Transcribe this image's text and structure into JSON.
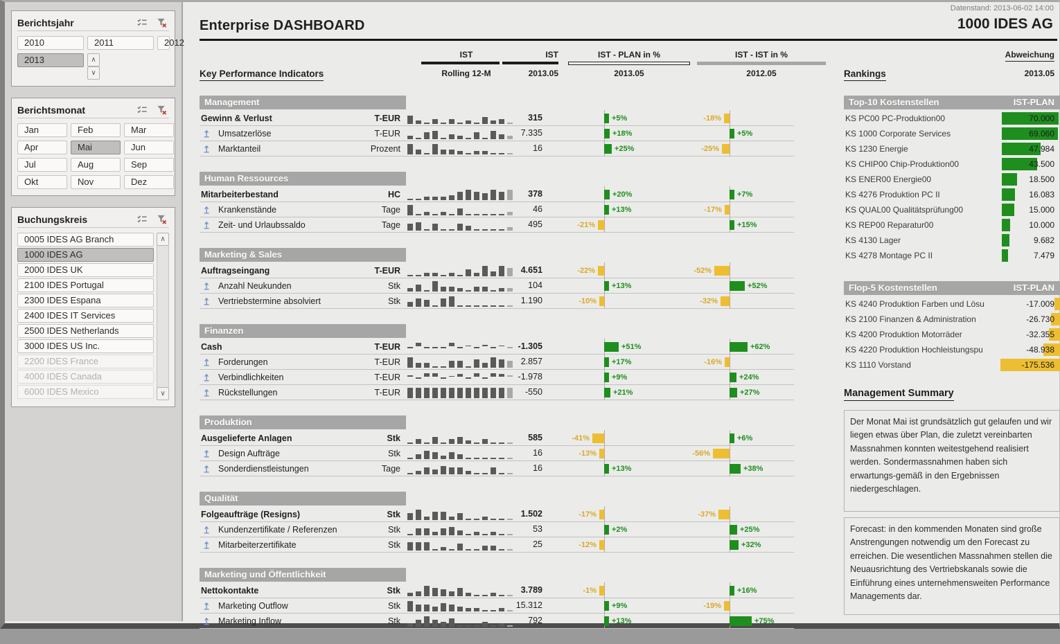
{
  "window": {
    "datenstand": "Datenstand: 2013-06-02 14:00",
    "title": "Enterprise DASHBOARD",
    "company": "1000 IDES AG"
  },
  "colors": {
    "green": "#1e8e1e",
    "amber": "#edbe31",
    "amber_label": "#d9a92b",
    "spark": "#5a5a5a",
    "spark_last": "#a9a9a9",
    "section_header": "#a6a6a6"
  },
  "icons": {
    "scroll_up": "∧",
    "scroll_down": "∨"
  },
  "slicers": [
    {
      "id": "berichtsjahr",
      "title": "Berichtsjahr",
      "items": [
        {
          "label": "2010",
          "state": "normal"
        },
        {
          "label": "2011",
          "state": "normal"
        },
        {
          "label": "2012",
          "state": "normal"
        },
        {
          "label": "2013",
          "state": "selected"
        }
      ]
    },
    {
      "id": "berichtsmonat",
      "title": "Berichtsmonat",
      "items": [
        {
          "label": "Jan",
          "state": "normal"
        },
        {
          "label": "Feb",
          "state": "normal"
        },
        {
          "label": "Mar",
          "state": "normal"
        },
        {
          "label": "Apr",
          "state": "normal"
        },
        {
          "label": "Mai",
          "state": "selected"
        },
        {
          "label": "Jun",
          "state": "normal"
        },
        {
          "label": "Jul",
          "state": "normal"
        },
        {
          "label": "Aug",
          "state": "normal"
        },
        {
          "label": "Sep",
          "state": "normal"
        },
        {
          "label": "Okt",
          "state": "normal"
        },
        {
          "label": "Nov",
          "state": "normal"
        },
        {
          "label": "Dez",
          "state": "normal"
        }
      ]
    },
    {
      "id": "buchungskreis",
      "title": "Buchungskreis",
      "items": [
        {
          "label": "0005 IDES AG Branch",
          "state": "normal"
        },
        {
          "label": "1000 IDES AG",
          "state": "selected"
        },
        {
          "label": "2000 IDES UK",
          "state": "normal"
        },
        {
          "label": "2100 IDES Portugal",
          "state": "normal"
        },
        {
          "label": "2300 IDES Espana",
          "state": "normal"
        },
        {
          "label": "2400 IDES IT Services",
          "state": "normal"
        },
        {
          "label": "2500 IDES Netherlands",
          "state": "normal"
        },
        {
          "label": "3000 IDES US Inc.",
          "state": "normal"
        },
        {
          "label": "2200 IDES France",
          "state": "disabled"
        },
        {
          "label": "4000 IDES Canada",
          "state": "disabled"
        },
        {
          "label": "6000 IDES Mexico",
          "state": "disabled"
        }
      ]
    }
  ],
  "kpi": {
    "heading": "Key Performance Indicators",
    "columns": {
      "ist_rolling_top": "IST",
      "ist_rolling_sub": "Rolling 12-M",
      "ist_month_top": "IST",
      "ist_month_sub": "2013.05",
      "plan_top": "IST - PLAN in %",
      "plan_sub": "2013.05",
      "istist_top": "IST - IST in %",
      "istist_sub": "2012.05",
      "abweichung_top": "Abweichung",
      "abweichung_sub": "2013.05"
    },
    "sections": [
      {
        "title": "Management",
        "rows": [
          {
            "label": "Gewinn & Verlust",
            "unit": "T-EUR",
            "parent": true,
            "value": "315",
            "plan": 5,
            "plan_label": "+5%",
            "ist": -18,
            "ist_label": "-18%",
            "spark": [
              5,
              2,
              1,
              3,
              1,
              3,
              1,
              2,
              1,
              4,
              2,
              3,
              1
            ]
          },
          {
            "label": "Umsatzerlöse",
            "unit": "T-EUR",
            "parent": false,
            "value": "7.335",
            "plan": 18,
            "plan_label": "+18%",
            "ist": 5,
            "ist_label": "+5%",
            "spark": [
              2,
              0.5,
              4,
              5,
              1,
              3,
              2,
              0.5,
              4,
              1,
              5,
              3,
              2
            ]
          },
          {
            "label": "Marktanteil",
            "unit": "Prozent",
            "parent": false,
            "value": "16",
            "plan": 25,
            "plan_label": "+25%",
            "ist": -25,
            "ist_label": "-25%",
            "spark": [
              6,
              3,
              0.5,
              6,
              3,
              3,
              2,
              0.5,
              2,
              2,
              0.5,
              0.5,
              1
            ]
          }
        ]
      },
      {
        "title": "Human Ressources",
        "rows": [
          {
            "label": "Mitarbeiterbestand",
            "unit": "HC",
            "parent": true,
            "value": "378",
            "plan": 20,
            "plan_label": "+20%",
            "ist": 7,
            "ist_label": "+7%",
            "spark": [
              0.5,
              1,
              2,
              2,
              2,
              3,
              5,
              6,
              5,
              4,
              6,
              5,
              6
            ]
          },
          {
            "label": "Krankenstände",
            "unit": "Tage",
            "parent": false,
            "value": "46",
            "plan": 13,
            "plan_label": "+13%",
            "ist": -17,
            "ist_label": "-17%",
            "spark": [
              6,
              1,
              2,
              0.5,
              2,
              0.5,
              4,
              0.5,
              1,
              1,
              1,
              1,
              2
            ]
          },
          {
            "label": "Zeit- und Urlaubssaldo",
            "unit": "Tage",
            "parent": false,
            "value": "495",
            "plan": -21,
            "plan_label": "-21%",
            "ist": 15,
            "ist_label": "+15%",
            "spark": [
              4,
              5,
              0.5,
              4,
              1,
              0.5,
              4,
              3,
              0.5,
              0.5,
              0.5,
              0.5,
              2
            ]
          }
        ]
      },
      {
        "title": "Marketing & Sales",
        "rows": [
          {
            "label": "Auftragseingang",
            "unit": "T-EUR",
            "parent": true,
            "value": "4.651",
            "plan": -22,
            "plan_label": "-22%",
            "ist": -52,
            "ist_label": "-52%",
            "spark": [
              0.5,
              0.5,
              2,
              2,
              0.5,
              2,
              1,
              4,
              2,
              6,
              3,
              6,
              5
            ]
          },
          {
            "label": "Anzahl Neukunden",
            "unit": "Stk",
            "parent": false,
            "value": "104",
            "plan": 13,
            "plan_label": "+13%",
            "ist": 52,
            "ist_label": "+52%",
            "spark": [
              2,
              4,
              1,
              6,
              3,
              3,
              2,
              0.5,
              3,
              3,
              1,
              2,
              2
            ]
          },
          {
            "label": "Vertriebstermine absolviert",
            "unit": "Stk",
            "parent": false,
            "value": "1.190",
            "plan": -10,
            "plan_label": "-10%",
            "ist": -32,
            "ist_label": "-32%",
            "spark": [
              3,
              5,
              4,
              1,
              5,
              6,
              0.5,
              1,
              1,
              0.5,
              1,
              0.5,
              1
            ]
          }
        ]
      },
      {
        "title": "Finanzen",
        "rows": [
          {
            "label": "Cash",
            "unit": "T-EUR",
            "parent": true,
            "value": "-1.305",
            "plan": 51,
            "plan_label": "+51%",
            "ist": 62,
            "ist_label": "+62%",
            "spark": [
              -1,
              4,
              -2,
              -0.5,
              -0.5,
              4,
              -2,
              1,
              -0.5,
              2,
              -1,
              1,
              -0.5
            ]
          },
          {
            "label": "Forderungen",
            "unit": "T-EUR",
            "parent": false,
            "value": "2.857",
            "plan": 17,
            "plan_label": "+17%",
            "ist": -16,
            "ist_label": "-16%",
            "spark": [
              6,
              3,
              3,
              1,
              0.5,
              4,
              4,
              0.5,
              5,
              3,
              6,
              5,
              4
            ]
          },
          {
            "label": "Verbindlichkeiten",
            "unit": "T-EUR",
            "parent": false,
            "value": "-1.978",
            "plan": 9,
            "plan_label": "+9%",
            "ist": 24,
            "ist_label": "+24%",
            "spark": [
              2,
              -2,
              4,
              4,
              -2,
              1,
              3,
              -2,
              4,
              -2,
              4,
              3,
              2
            ]
          },
          {
            "label": "Rückstellungen",
            "unit": "T-EUR",
            "parent": false,
            "value": "-550",
            "plan": 21,
            "plan_label": "+21%",
            "ist": 27,
            "ist_label": "+27%",
            "spark": [
              6,
              6,
              6,
              6,
              6,
              6,
              6,
              6,
              6,
              6,
              6,
              6,
              6
            ]
          }
        ]
      },
      {
        "title": "Produktion",
        "rows": [
          {
            "label": "Ausgelieferte Anlagen",
            "unit": "Stk",
            "parent": true,
            "value": "585",
            "plan": -41,
            "plan_label": "-41%",
            "ist": 6,
            "ist_label": "+6%",
            "spark": [
              0.5,
              3,
              1,
              4,
              1,
              3,
              4,
              2,
              0.5,
              3,
              1,
              0.5,
              1
            ]
          },
          {
            "label": "Design Aufträge",
            "unit": "Stk",
            "parent": false,
            "value": "16",
            "plan": -13,
            "plan_label": "-13%",
            "ist": -56,
            "ist_label": "-56%",
            "spark": [
              1,
              3,
              5,
              4,
              2,
              4,
              3,
              1,
              0.5,
              1,
              0.5,
              0.5,
              0.5
            ]
          },
          {
            "label": "Sonderdienstleistungen",
            "unit": "Tage",
            "parent": false,
            "value": "16",
            "plan": 13,
            "plan_label": "+13%",
            "ist": 38,
            "ist_label": "+38%",
            "spark": [
              1,
              2,
              4,
              3,
              5,
              4,
              4,
              2,
              0.5,
              0.5,
              4,
              0.5,
              1
            ]
          }
        ]
      },
      {
        "title": "Qualität",
        "rows": [
          {
            "label": "Folgeaufträge (Resigns)",
            "unit": "Stk",
            "parent": true,
            "value": "1.502",
            "plan": -17,
            "plan_label": "-17%",
            "ist": -37,
            "ist_label": "-37%",
            "spark": [
              4,
              6,
              2,
              5,
              5,
              2,
              4,
              0.5,
              1,
              2,
              0.5,
              0.5,
              1
            ]
          },
          {
            "label": "Kundenzertifikate / Referenzen",
            "unit": "Stk",
            "parent": false,
            "value": "53",
            "plan": 2,
            "plan_label": "+2%",
            "ist": 25,
            "ist_label": "+25%",
            "spark": [
              1,
              4,
              4,
              2,
              4,
              5,
              3,
              1,
              2,
              0.5,
              2,
              0.5,
              1
            ]
          },
          {
            "label": "Mitarbeiterzertifikate",
            "unit": "Stk",
            "parent": false,
            "value": "25",
            "plan": -12,
            "plan_label": "-12%",
            "ist": 32,
            "ist_label": "+32%",
            "spark": [
              5,
              5,
              5,
              1,
              2,
              0.5,
              4,
              0.5,
              1,
              3,
              3,
              0.5,
              1
            ]
          }
        ]
      },
      {
        "title": "Marketing und Öffentlichkeit",
        "rows": [
          {
            "label": "Nettokontakte",
            "unit": "Stk",
            "parent": true,
            "value": "3.789",
            "plan": -1,
            "plan_label": "-1%",
            "ist": 16,
            "ist_label": "+16%",
            "spark": [
              2,
              3,
              6,
              5,
              4,
              3,
              5,
              2,
              0.5,
              0.5,
              2,
              1,
              1
            ]
          },
          {
            "label": "Marketing Outflow",
            "unit": "Stk",
            "parent": false,
            "value": "15.312",
            "plan": 9,
            "plan_label": "+9%",
            "ist": -19,
            "ist_label": "-19%",
            "spark": [
              6,
              4,
              4,
              3,
              5,
              4,
              3,
              2,
              2,
              0.5,
              1,
              2,
              1
            ]
          },
          {
            "label": "Marketing Inflow",
            "unit": "Stk",
            "parent": false,
            "value": "792",
            "plan": 13,
            "plan_label": "+13%",
            "ist": 75,
            "ist_label": "+75%",
            "spark": [
              2,
              4,
              6,
              4,
              3,
              5,
              0.5,
              1,
              0.5,
              3,
              1,
              2,
              0.5
            ]
          }
        ]
      }
    ]
  },
  "rankings": {
    "heading": "Rankings",
    "top10": {
      "title": "Top-10 Kostenstellen",
      "col": "IST-PLAN",
      "rows": [
        {
          "label": "KS PC00 PC-Produktion00",
          "value": "70.000",
          "amount": 70000
        },
        {
          "label": "KS 1000 Corporate Services",
          "value": "69.060",
          "amount": 69060
        },
        {
          "label": "KS 1230 Energie",
          "value": "47.984",
          "amount": 47984
        },
        {
          "label": "KS CHIP00 Chip-Produktion00",
          "value": "43.500",
          "amount": 43500
        },
        {
          "label": "KS ENER00 Energie00",
          "value": "18.500",
          "amount": 18500
        },
        {
          "label": "KS 4276 Produktion PC II",
          "value": "16.083",
          "amount": 16083
        },
        {
          "label": "KS QUAL00 Qualitätsprüfung00",
          "value": "15.000",
          "amount": 15000
        },
        {
          "label": "KS REP00 Reparatur00",
          "value": "10.000",
          "amount": 10000
        },
        {
          "label": "KS 4130 Lager",
          "value": "9.682",
          "amount": 9682
        },
        {
          "label": "KS 4278 Montage PC II",
          "value": "7.479",
          "amount": 7479
        }
      ]
    },
    "flop5": {
      "title": "Flop-5 Kostenstellen",
      "col": "IST-PLAN",
      "rows": [
        {
          "label": "KS 4240 Produktion Farben und Lösu",
          "value": "-17.009",
          "amount": 17009
        },
        {
          "label": "KS 2100 Finanzen & Administration",
          "value": "-26.730",
          "amount": 26730
        },
        {
          "label": "KS 4200 Produktion Motorräder",
          "value": "-32.355",
          "amount": 32355
        },
        {
          "label": "KS 4220 Produktion Hochleistungspu",
          "value": "-48.938",
          "amount": 48938
        },
        {
          "label": "KS 1110 Vorstand",
          "value": "-175.536",
          "amount": 175536
        }
      ]
    }
  },
  "summary": {
    "title": "Management Summary",
    "p1": "Der Monat Mai ist grundsätzlich gut gelaufen und wir liegen etwas über Plan, die zuletzt vereinbarten Massnahmen konnten weitestgehend realisiert werden. Sondermassnahmen haben sich erwartungs-gemäß in den Ergebnissen niedergeschlagen.",
    "p2": "Forecast: in den kommenden Monaten sind große Anstrengungen notwendig um den Forecast zu erreichen. Die wesentlichen Massnahmen stellen die Neuausrichtung des Vertriebskanals sowie die Einführung eines unternehmensweiten Performance Managements dar."
  }
}
